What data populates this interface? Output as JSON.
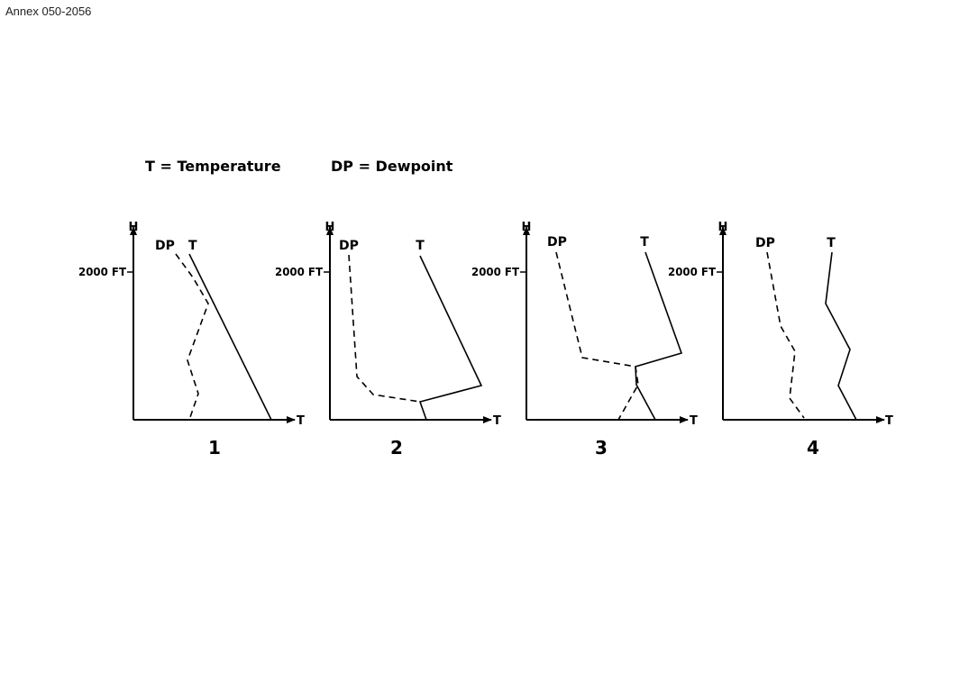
{
  "header": {
    "annex_label": "Annex 050-2056"
  },
  "legend": {
    "temperature": "T = Temperature",
    "dewpoint": "DP = Dewpoint"
  },
  "common": {
    "y_axis_label": "H",
    "x_axis_label": "T",
    "height_tick_label": "2000 FT",
    "dp_label": "DP",
    "t_label": "T"
  },
  "diagrams": [
    {
      "number": "1"
    },
    {
      "number": "2"
    },
    {
      "number": "3"
    },
    {
      "number": "4"
    }
  ]
}
